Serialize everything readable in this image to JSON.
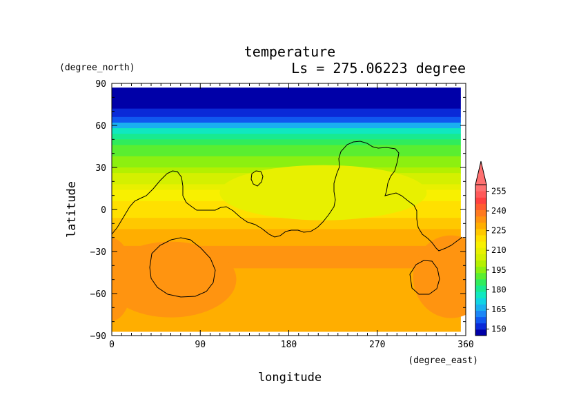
{
  "chart_data": {
    "type": "heatmap",
    "title": "temperature",
    "subtitle": "Ls = 275.06223 degree",
    "xlabel": "longitude",
    "ylabel": "latitude",
    "x_units": "(degree_east)",
    "y_units": "(degree_north)",
    "xlim": [
      0,
      360
    ],
    "ylim": [
      -90,
      90
    ],
    "data_x_extent": [
      0,
      355
    ],
    "data_y_extent": [
      -87,
      87
    ],
    "x_ticks": [
      0,
      90,
      180,
      270,
      360
    ],
    "x_tick_labels": [
      "0",
      "90",
      "180",
      "270",
      "360"
    ],
    "y_ticks": [
      90,
      60,
      30,
      0,
      -30,
      -60,
      -90
    ],
    "y_tick_labels": [
      "90",
      "60",
      "30",
      "0",
      "−30",
      "−60",
      "−90"
    ],
    "colorbar": {
      "levels": [
        145,
        150,
        155,
        160,
        165,
        170,
        175,
        180,
        185,
        190,
        195,
        200,
        205,
        210,
        215,
        220,
        225,
        230,
        235,
        240,
        245,
        250,
        255,
        260
      ],
      "tick_labels": [
        "150",
        "165",
        "180",
        "195",
        "210",
        "225",
        "240",
        "255"
      ],
      "colors": [
        "#0000a8",
        "#0a2ad8",
        "#1058f0",
        "#1c86f6",
        "#1ab0f0",
        "#10d4e4",
        "#10e8c0",
        "#18ea90",
        "#30ec5c",
        "#5aee30",
        "#8cf010",
        "#b4f000",
        "#d4f000",
        "#e8f000",
        "#f8f000",
        "#ffe000",
        "#ffc800",
        "#ffae00",
        "#ff9410",
        "#ff7a20",
        "#ff5c30",
        "#ff4040",
        "#ff5a5a",
        "#ff7070"
      ],
      "extend": "max"
    },
    "field": {
      "description_rows_latitude": [
        87,
        80,
        72,
        66,
        62,
        58,
        54,
        50,
        46,
        42,
        38,
        34,
        30,
        26,
        22,
        18,
        14,
        10,
        6,
        2,
        -2,
        -6,
        -10,
        -14,
        -18,
        -22,
        -26,
        -30,
        -36,
        -42,
        -48,
        -54,
        -60,
        -66,
        -72,
        -78,
        -84,
        -87
      ],
      "row_values": [
        148,
        148,
        150,
        158,
        168,
        176,
        182,
        186,
        190,
        194,
        196,
        199,
        202,
        205,
        208,
        212,
        215,
        218,
        220,
        222,
        224,
        226,
        228,
        230,
        232,
        234,
        236,
        236,
        236,
        234,
        232,
        232,
        232,
        232,
        233,
        234,
        232,
        232
      ]
    }
  }
}
